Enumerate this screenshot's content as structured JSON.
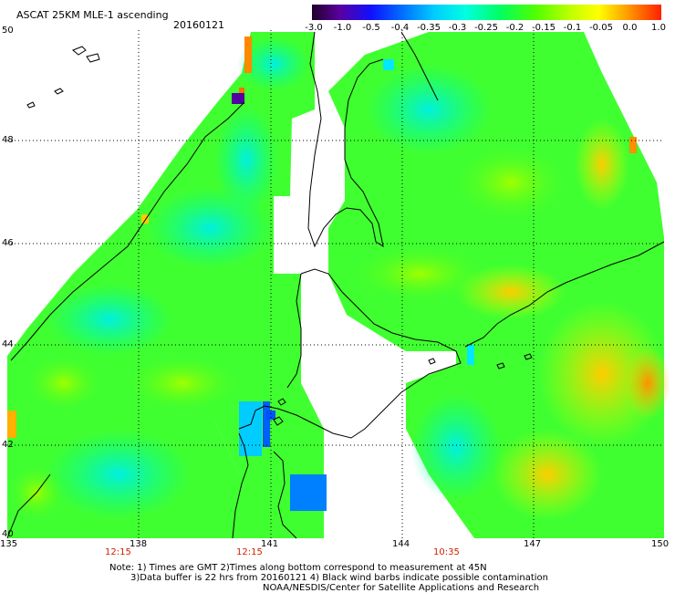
{
  "title": "ASCAT 25KM MLE-1 ascending",
  "date": "20160121",
  "colorbar": {
    "labels": [
      "-3.0",
      "-1.0",
      "-0.5",
      "-0.4",
      "-0.35",
      "-0.3",
      "-0.25",
      "-0.2",
      "-0.15",
      "-0.1",
      "-0.05",
      "0.0",
      "1.0"
    ],
    "colors": [
      "#2a0030",
      "#5a00a0",
      "#1818ff",
      "#0060ff",
      "#00a0ff",
      "#00e8ff",
      "#00ffa8",
      "#30ff30",
      "#90ff00",
      "#e8ff00",
      "#ffb000",
      "#ff4000"
    ]
  },
  "lat_labels": [
    "50",
    "48",
    "46",
    "44",
    "42",
    "40"
  ],
  "lon_labels": [
    "135",
    "138",
    "141",
    "144",
    "147",
    "150"
  ],
  "times": [
    {
      "label": "12:15",
      "lon": 137.5
    },
    {
      "label": "12:15",
      "lon": 140.5
    },
    {
      "label": "10:35",
      "lon": 145.0
    }
  ],
  "notes": [
    "Note: 1) Times are GMT 2)Times along bottom correspond to measurement at 45N",
    "3)Data buffer is 22 hrs from 20160121 4) Black wind barbs indicate possible contamination",
    "NOAA/NESDIS/Center for Satellite Applications and Research"
  ]
}
